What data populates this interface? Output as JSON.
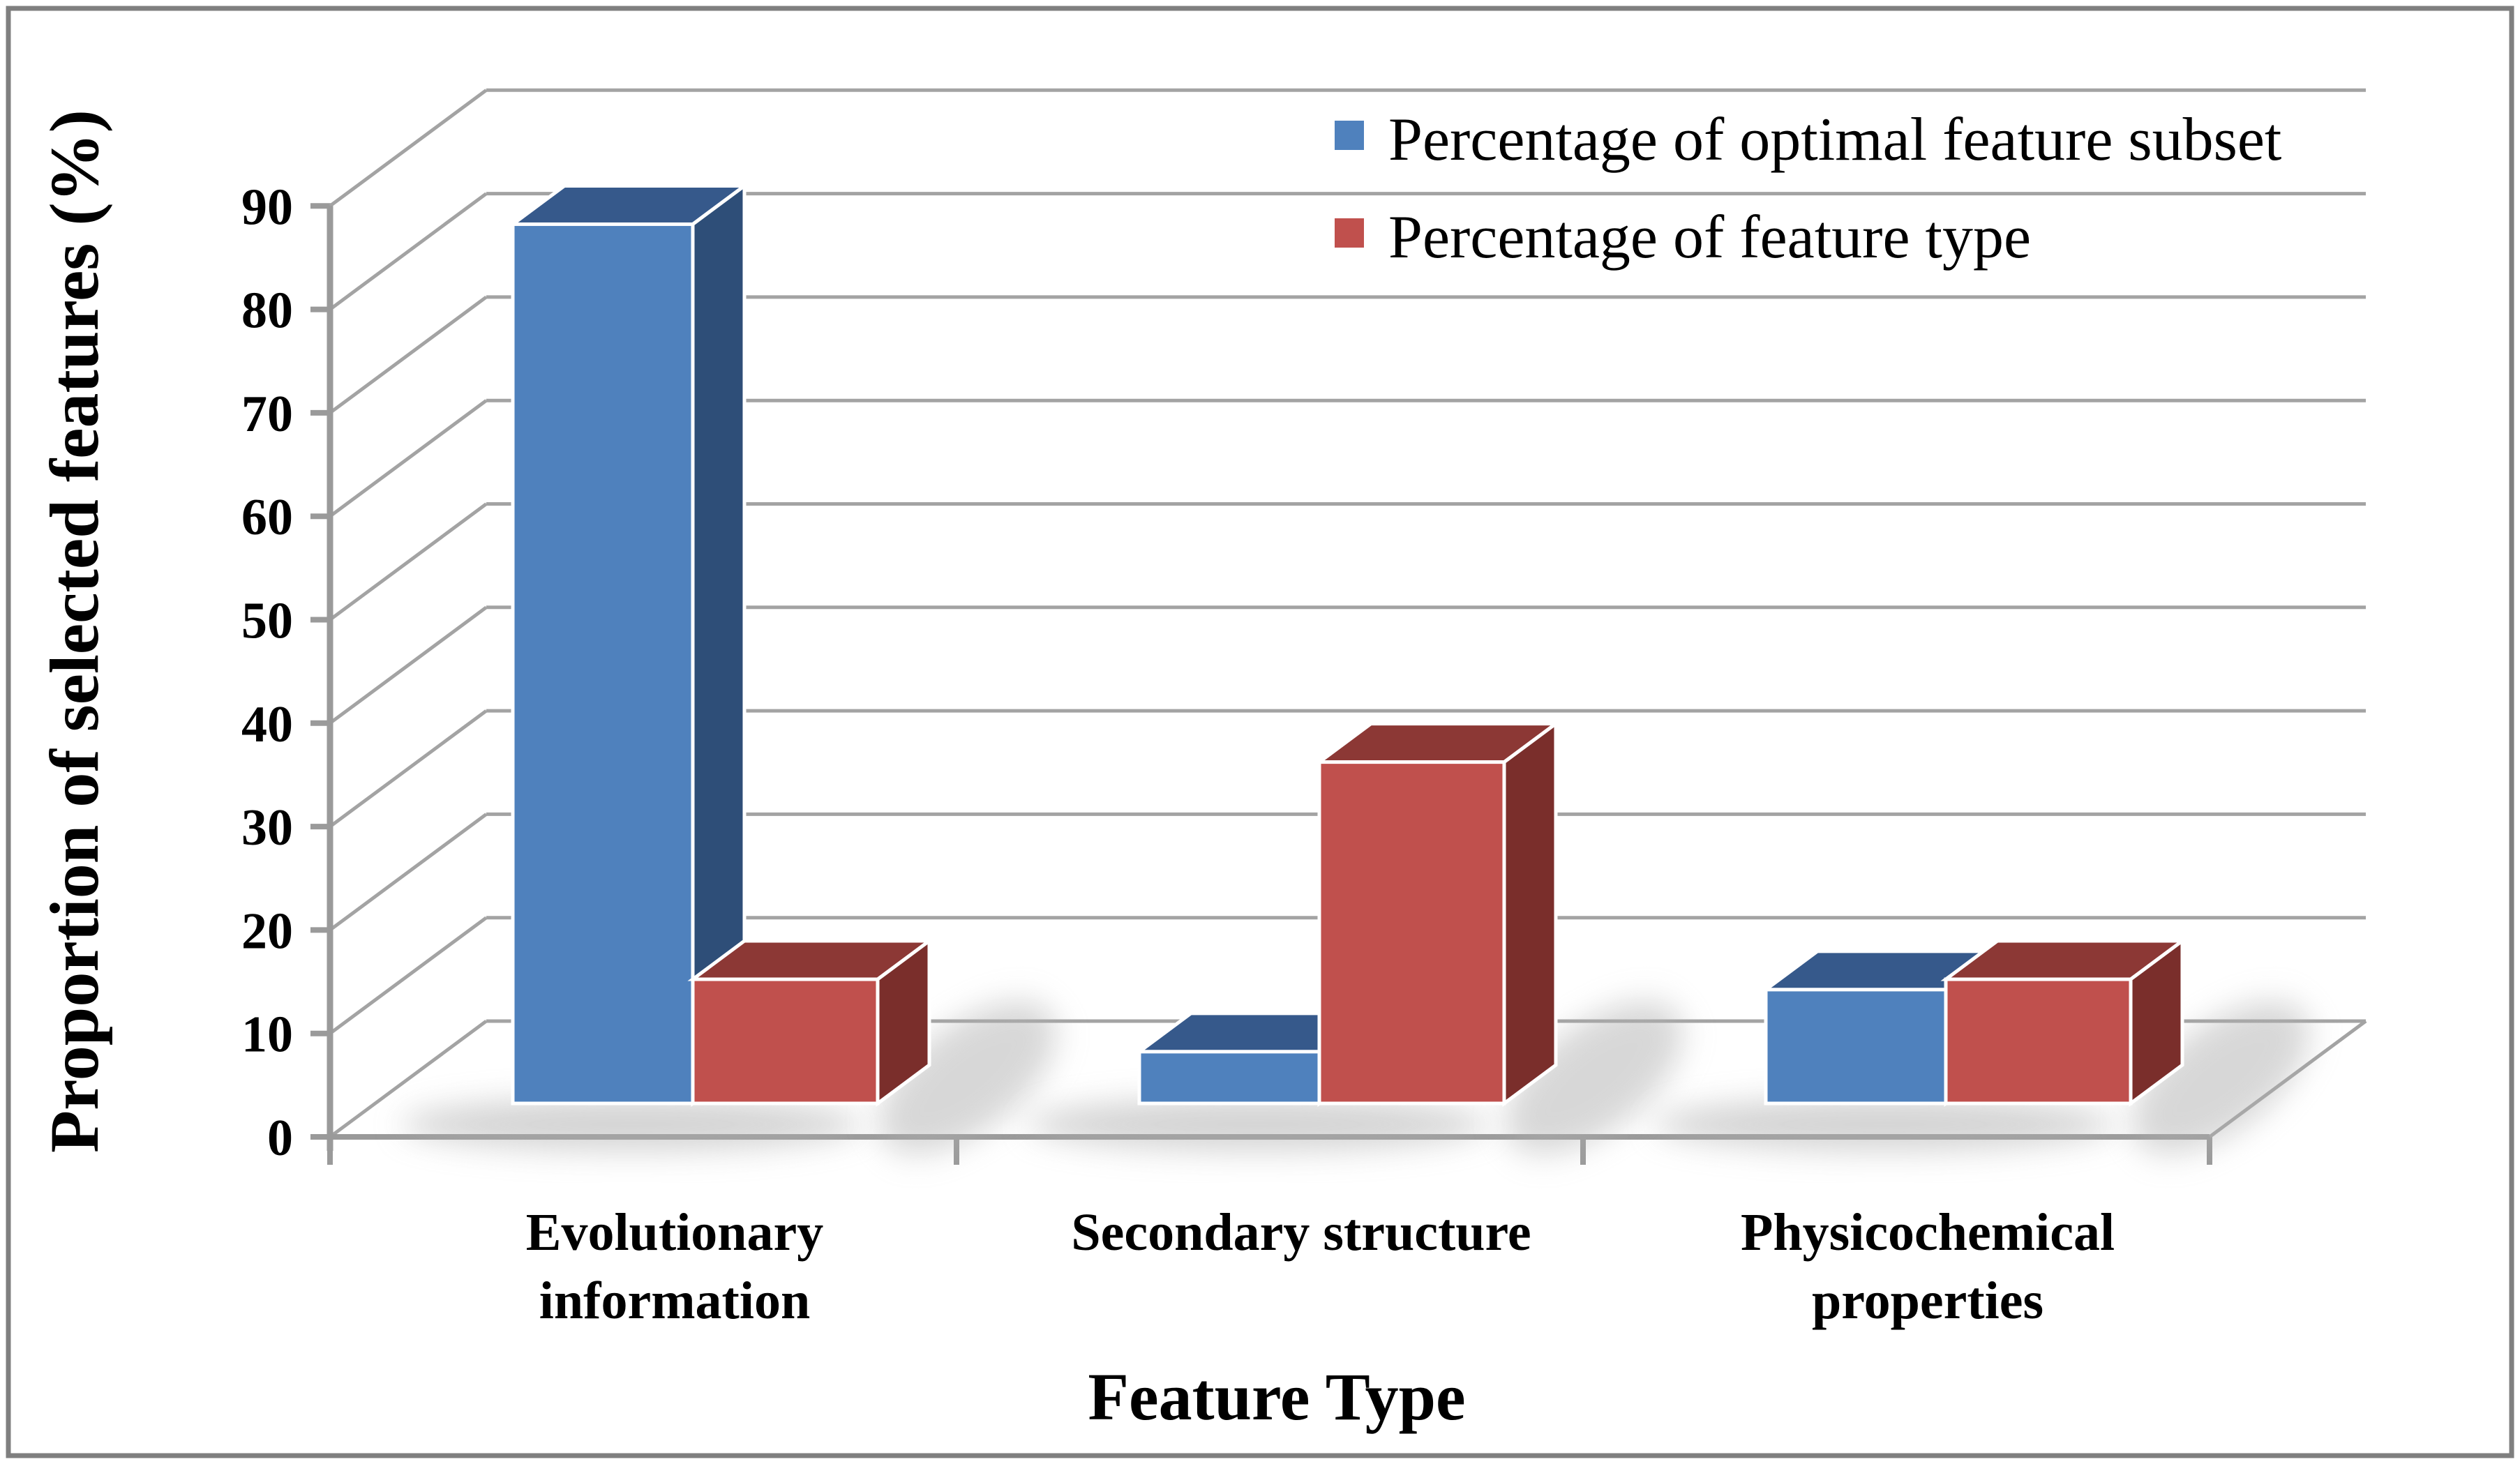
{
  "figure": {
    "background": "#ffffff",
    "border_color": "#7f7f7f"
  },
  "chart_data": {
    "type": "bar",
    "projection": "3d-clustered-column",
    "title": "",
    "xlabel": "Feature Type",
    "ylabel": "Proportion of selected features (%)",
    "ylim": [
      0,
      90
    ],
    "ytick_step": 10,
    "yticks": [
      0,
      10,
      20,
      30,
      40,
      50,
      60,
      70,
      80,
      90
    ],
    "grid": true,
    "legend_position": "top-right",
    "categories": [
      "Evolutionary information",
      "Secondary structure",
      "Physicochemical properties"
    ],
    "category_label_lines": [
      [
        "Evolutionary",
        "information"
      ],
      [
        "Secondary structure"
      ],
      [
        "Physicochemical",
        "properties"
      ]
    ],
    "series": [
      {
        "name": "Percentage of optimal feature subset",
        "values": [
          85,
          5,
          11
        ],
        "color": "#4f81bd",
        "color_top": "#36598b",
        "color_side": "#2e4e78"
      },
      {
        "name": "Percentage of feature type",
        "values": [
          12,
          33,
          12
        ],
        "color": "#c0504d",
        "color_top": "#8c3835",
        "color_side": "#7a2e2b"
      }
    ],
    "colors": {
      "gridline": "#a3a3a3",
      "axis": "#9a9a9a",
      "tick_label": "#000000",
      "bar_outline": "#ffffff",
      "shadow": "#b0b0b0"
    }
  }
}
